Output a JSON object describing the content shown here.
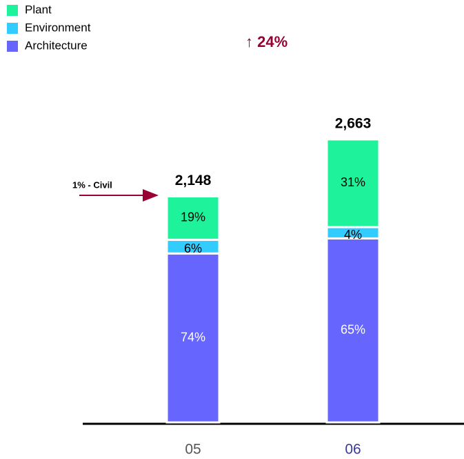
{
  "chart_data": {
    "type": "stacked_bar",
    "categories": [
      "05",
      "06"
    ],
    "series": [
      {
        "name": "Plant",
        "color": "#1ef29a",
        "values": [
          19,
          31
        ],
        "value_labels": [
          "19%",
          "31%"
        ]
      },
      {
        "name": "Environment",
        "color": "#33ccff",
        "values": [
          6,
          4
        ],
        "value_labels": [
          "6%",
          "4%"
        ]
      },
      {
        "name": "Architecture",
        "color": "#6666ff",
        "values": [
          74,
          65
        ],
        "value_labels": [
          "74%",
          "65%"
        ]
      }
    ],
    "totals": {
      "values": [
        2148,
        2663
      ],
      "value_labels": [
        "2,148",
        "2,663"
      ]
    },
    "annotations": {
      "growth": "↑ 24%",
      "civil": "1% - Civil"
    }
  }
}
